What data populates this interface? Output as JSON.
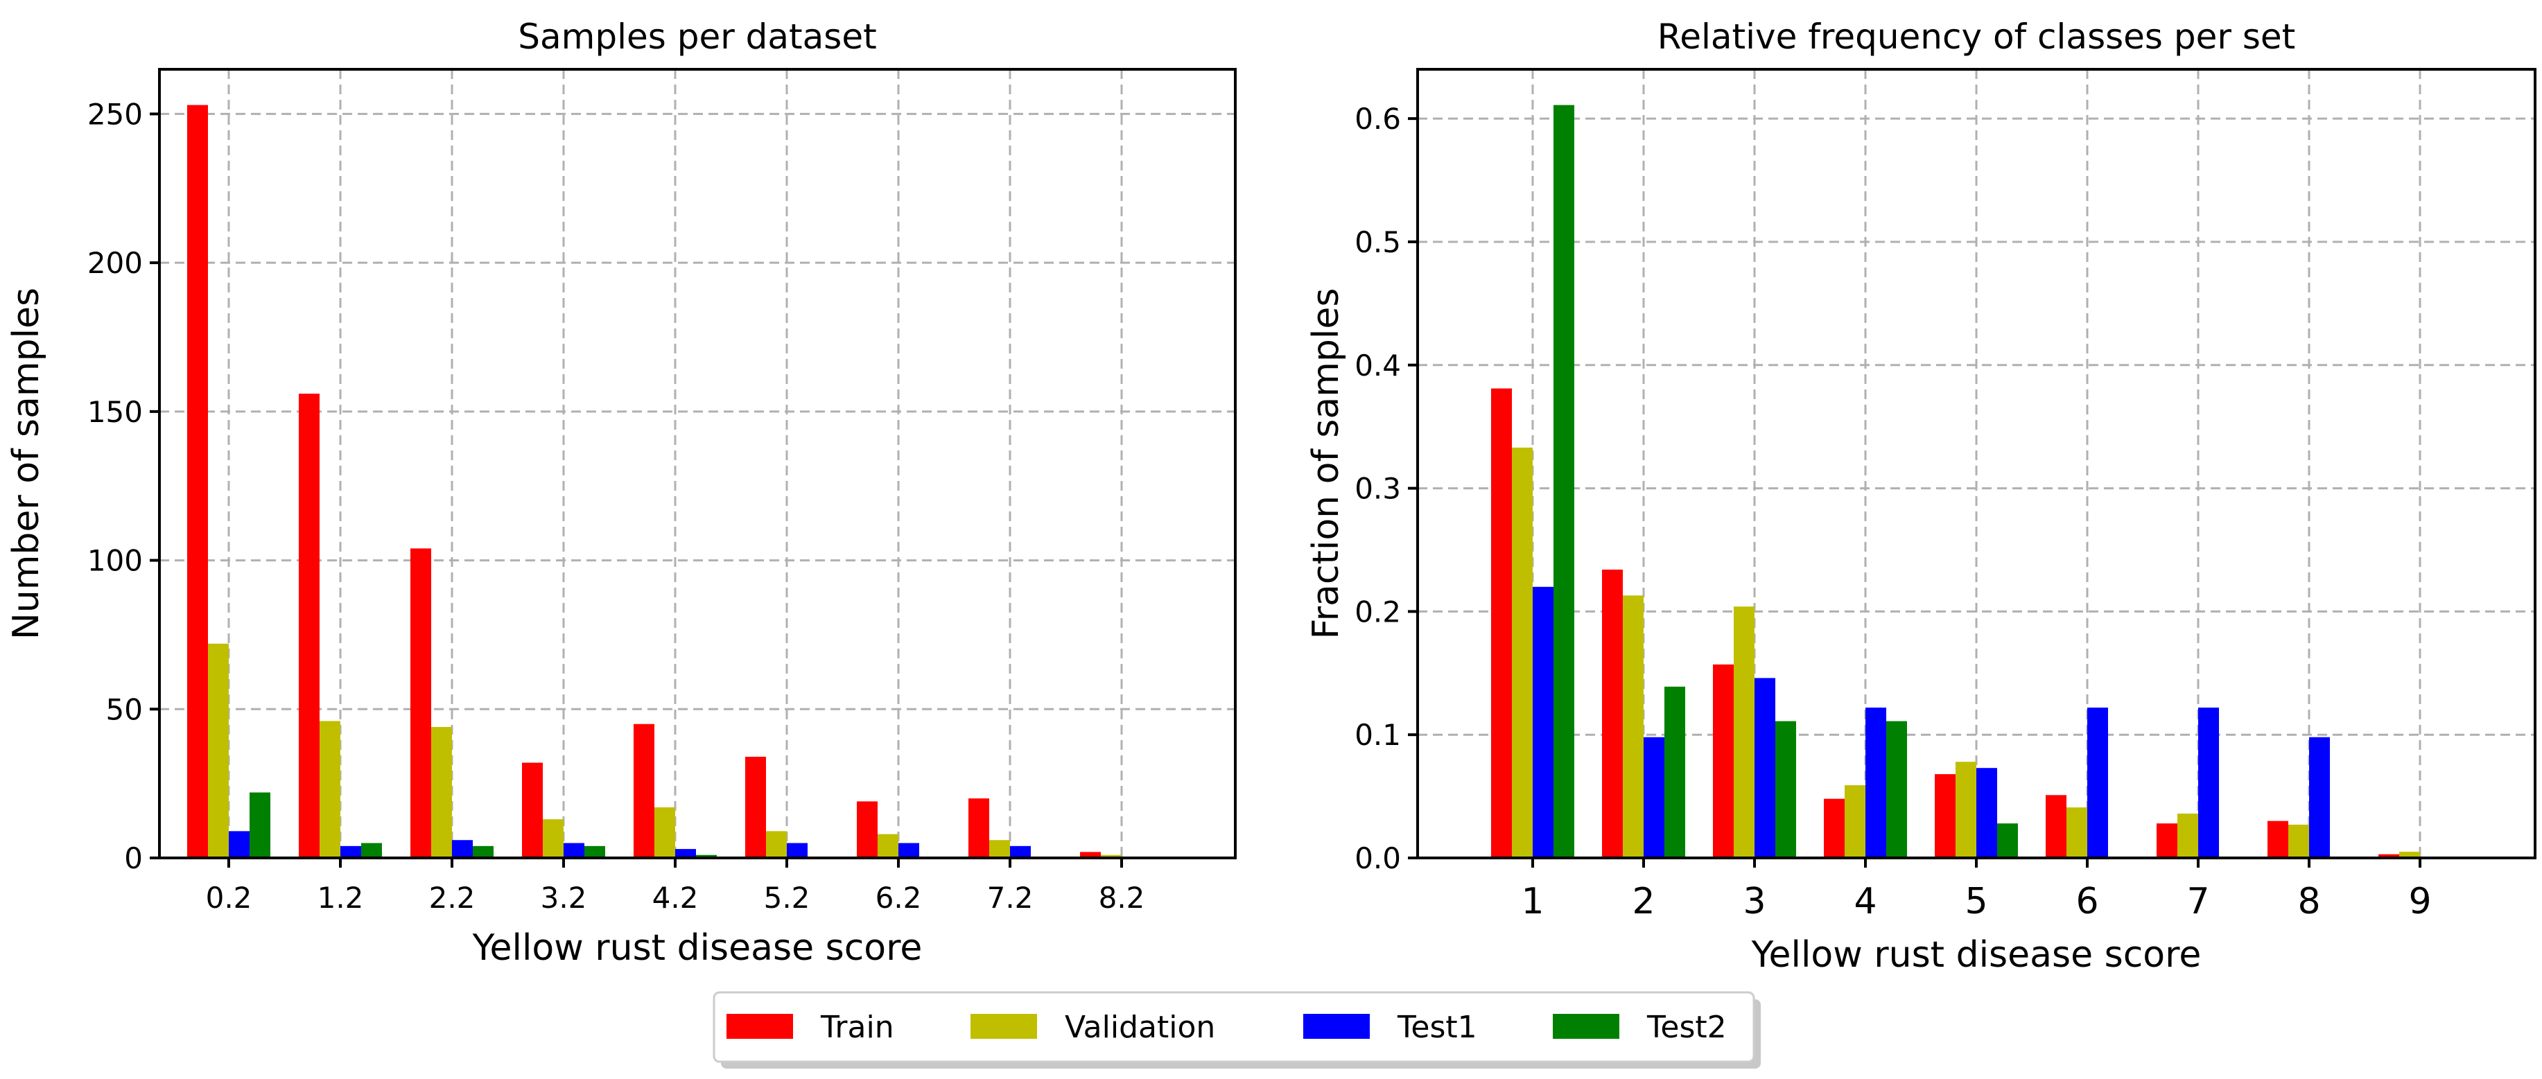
{
  "colors": {
    "Train": "#ff0000",
    "Validation": "#bfbf00",
    "Test1": "#0000ff",
    "Test2": "#008000"
  },
  "legend": [
    "Train",
    "Validation",
    "Test1",
    "Test2"
  ],
  "chart_data": [
    {
      "type": "bar",
      "title": "Samples per dataset",
      "xlabel": "Yellow rust disease score",
      "ylabel": "Number of samples",
      "categories": [
        "0.2",
        "1.2",
        "2.2",
        "3.2",
        "4.2",
        "5.2",
        "6.2",
        "7.2",
        "8.2"
      ],
      "ylim": [
        0,
        265
      ],
      "yticks": [
        0,
        50,
        100,
        150,
        200,
        250
      ],
      "grid": true,
      "series": [
        {
          "name": "Train",
          "values": [
            253,
            156,
            104,
            32,
            45,
            34,
            19,
            20,
            2
          ]
        },
        {
          "name": "Validation",
          "values": [
            72,
            46,
            44,
            13,
            17,
            9,
            8,
            6,
            1
          ]
        },
        {
          "name": "Test1",
          "values": [
            9,
            4,
            6,
            5,
            3,
            5,
            5,
            4,
            0
          ]
        },
        {
          "name": "Test2",
          "values": [
            22,
            5,
            4,
            4,
            1,
            0,
            0,
            0,
            0
          ]
        }
      ]
    },
    {
      "type": "bar",
      "title": "Relative frequency of classes per set",
      "xlabel": "Yellow rust disease score",
      "ylabel": "Fraction of samples",
      "categories": [
        "1",
        "2",
        "3",
        "4",
        "5",
        "6",
        "7",
        "8",
        "9"
      ],
      "ylim": [
        0,
        0.64
      ],
      "yticks": [
        0.0,
        0.1,
        0.2,
        0.3,
        0.4,
        0.5,
        0.6
      ],
      "grid": true,
      "series": [
        {
          "name": "Train",
          "values": [
            0.381,
            0.234,
            0.157,
            0.048,
            0.068,
            0.051,
            0.028,
            0.03,
            0.003
          ]
        },
        {
          "name": "Validation",
          "values": [
            0.333,
            0.213,
            0.204,
            0.059,
            0.078,
            0.041,
            0.036,
            0.027,
            0.005
          ]
        },
        {
          "name": "Test1",
          "values": [
            0.22,
            0.098,
            0.146,
            0.122,
            0.073,
            0.122,
            0.122,
            0.098,
            0.0
          ]
        },
        {
          "name": "Test2",
          "values": [
            0.611,
            0.139,
            0.111,
            0.111,
            0.028,
            0.0,
            0.0,
            0.0,
            0.0
          ]
        }
      ]
    }
  ]
}
